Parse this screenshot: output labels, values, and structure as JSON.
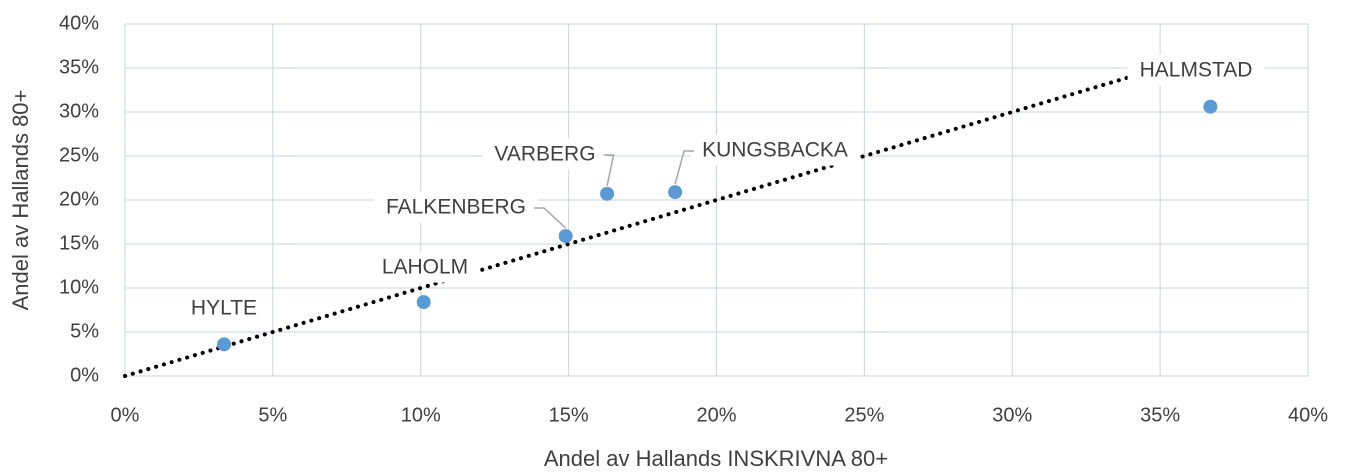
{
  "chart_data": {
    "type": "scatter",
    "xlabel": "Andel av Hallands INSKRIVNA 80+",
    "ylabel": "Andel av Hallands 80+",
    "xlim": [
      0,
      40
    ],
    "ylim": [
      0,
      40
    ],
    "xticks": [
      {
        "value": 0,
        "label": "0%"
      },
      {
        "value": 5,
        "label": "5%"
      },
      {
        "value": 10,
        "label": "10%"
      },
      {
        "value": 15,
        "label": "15%"
      },
      {
        "value": 20,
        "label": "20%"
      },
      {
        "value": 25,
        "label": "25%"
      },
      {
        "value": 30,
        "label": "30%"
      },
      {
        "value": 35,
        "label": "35%"
      },
      {
        "value": 40,
        "label": "40%"
      }
    ],
    "yticks": [
      {
        "value": 0,
        "label": "0%"
      },
      {
        "value": 5,
        "label": "5%"
      },
      {
        "value": 10,
        "label": "10%"
      },
      {
        "value": 15,
        "label": "15%"
      },
      {
        "value": 20,
        "label": "20%"
      },
      {
        "value": 25,
        "label": "25%"
      },
      {
        "value": 30,
        "label": "30%"
      },
      {
        "value": 35,
        "label": "35%"
      },
      {
        "value": 40,
        "label": "40%"
      }
    ],
    "grid": true,
    "series": [
      {
        "color": "#5b9bd5",
        "labels": [
          "HYLTE",
          "LAHOLM",
          "FALKENBERG",
          "VARBERG",
          "KUNGSBACKA",
          "HALMSTAD"
        ],
        "x": [
          3.35,
          10.1,
          14.9,
          16.3,
          18.6,
          36.7
        ],
        "values": [
          3.6,
          8.4,
          15.9,
          20.7,
          20.9,
          30.6
        ]
      }
    ],
    "trendline": {
      "color": "#000000",
      "x": [
        0,
        35
      ],
      "y": [
        0,
        35
      ]
    }
  }
}
